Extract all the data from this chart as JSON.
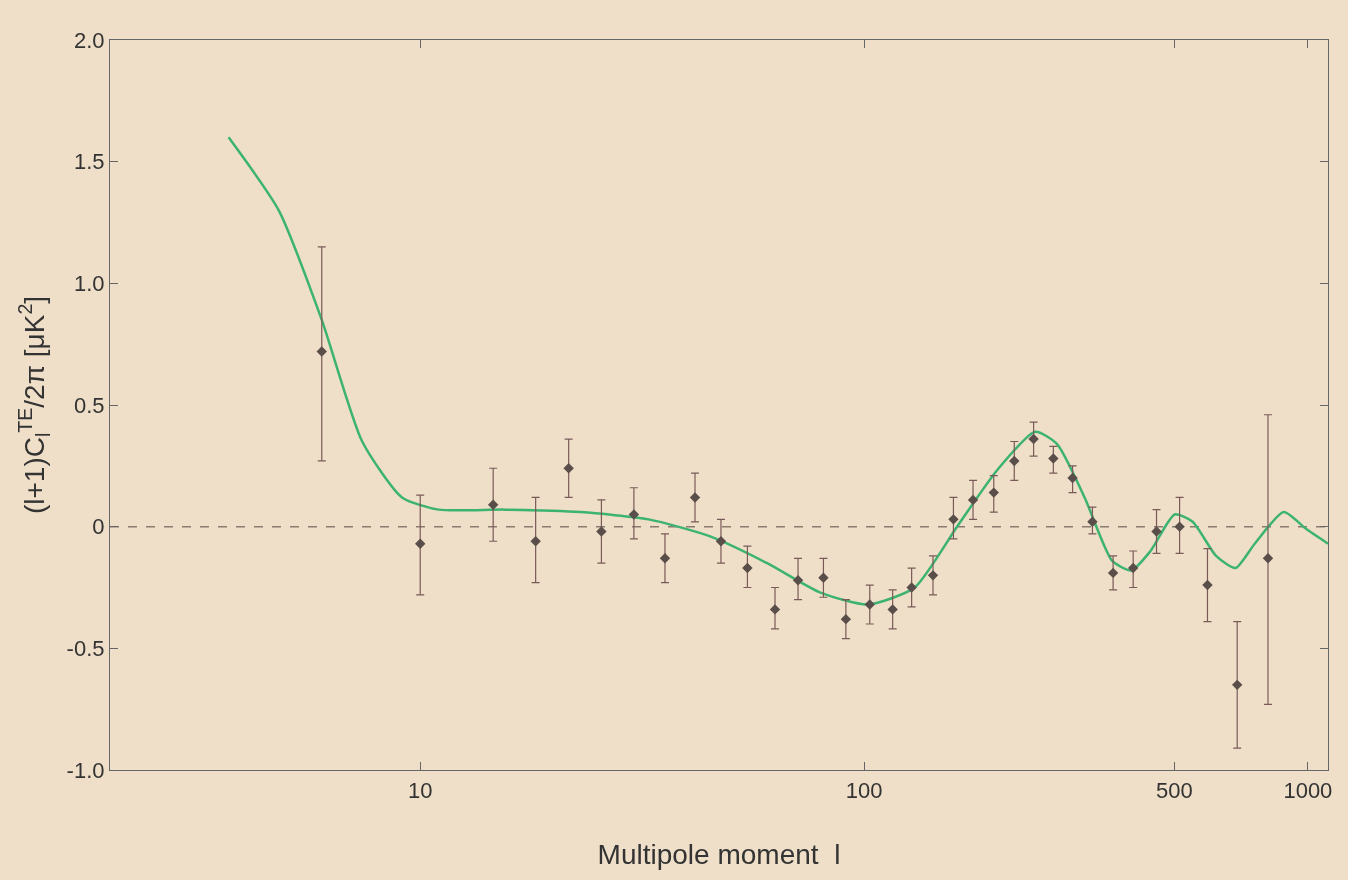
{
  "chart_data": {
    "type": "scatter",
    "xlabel": "Multipole moment  l",
    "ylabel": "(l+1)C$_{l}$$^{TE}$/2π [μK$^{2}$]",
    "log": "x",
    "xlim": [
      2,
      1110
    ],
    "xticks": [
      10,
      100,
      500,
      1000
    ],
    "ylim": [
      -1.0,
      2.0
    ],
    "yticks": [
      {
        "value": -1.0,
        "label": "-1.0"
      },
      {
        "value": -0.5,
        "label": "-0.5"
      },
      0,
      {
        "value": 0.5,
        "label": "0.5"
      },
      {
        "value": 1.0,
        "label": "1.0"
      },
      {
        "value": 1.5,
        "label": "1.5"
      },
      {
        "value": 2.0,
        "label": "2.0"
      }
    ],
    "grid": false,
    "ref_lines": [
      {
        "axis": "y",
        "value": 0,
        "color": "#8a7a70",
        "line_style": "dashed"
      }
    ],
    "series": [
      {
        "type": "line",
        "color": "#3cb371",
        "line_style": "solid",
        "marker": "none",
        "x": [
          3.7,
          4.8,
          6.0,
          7.4,
          9.1,
          11,
          15.5,
          23,
          32.7,
          45,
          60.5,
          79.5,
          102,
          130,
          162,
          199,
          243,
          272,
          314,
          362,
          400,
          442,
          501,
          550,
          621,
          687,
          759,
          882,
          992,
          1110
        ],
        "values": [
          1.6,
          1.3,
          0.85,
          0.35,
          0.12,
          0.07,
          0.07,
          0.06,
          0.03,
          -0.04,
          -0.15,
          -0.27,
          -0.32,
          -0.25,
          0.0,
          0.23,
          0.39,
          0.34,
          0.12,
          -0.14,
          -0.18,
          -0.1,
          0.05,
          0.02,
          -0.12,
          -0.17,
          -0.07,
          0.06,
          -0.01,
          -0.07
        ]
      },
      {
        "color": "#5a4e4a",
        "marker": "diamond",
        "x": [
          6,
          10,
          14.6,
          18.2,
          21.6,
          25.6,
          30.3,
          35.6,
          41.6,
          47.6,
          54.6,
          63,
          71,
          81,
          91,
          103,
          116,
          128,
          143,
          159,
          176,
          196,
          218,
          241,
          267,
          295,
          327,
          364,
          404,
          456,
          514,
          594,
          693,
          813
        ],
        "values": [
          0.72,
          -0.07,
          0.09,
          -0.06,
          0.24,
          -0.02,
          0.05,
          -0.13,
          0.12,
          -0.06,
          -0.17,
          -0.34,
          -0.22,
          -0.21,
          -0.38,
          -0.32,
          -0.34,
          -0.25,
          -0.2,
          0.03,
          0.11,
          0.14,
          0.27,
          0.36,
          0.28,
          0.2,
          0.02,
          -0.19,
          -0.17,
          -0.02,
          0.0,
          -0.24,
          -0.65,
          -0.13
        ],
        "errors": [
          [
            0.27,
            1.15
          ],
          [
            -0.28,
            0.13
          ],
          [
            -0.06,
            0.24
          ],
          [
            -0.23,
            0.12
          ],
          [
            0.12,
            0.36
          ],
          [
            -0.15,
            0.11
          ],
          [
            -0.05,
            0.16
          ],
          [
            -0.23,
            -0.03
          ],
          [
            0.02,
            0.22
          ],
          [
            -0.15,
            0.03
          ],
          [
            -0.25,
            -0.08
          ],
          [
            -0.42,
            -0.25
          ],
          [
            -0.3,
            -0.13
          ],
          [
            -0.29,
            -0.13
          ],
          [
            -0.46,
            -0.3
          ],
          [
            -0.4,
            -0.24
          ],
          [
            -0.42,
            -0.26
          ],
          [
            -0.33,
            -0.17
          ],
          [
            -0.28,
            -0.12
          ],
          [
            -0.05,
            0.12
          ],
          [
            0.03,
            0.19
          ],
          [
            0.06,
            0.21
          ],
          [
            0.19,
            0.35
          ],
          [
            0.29,
            0.43
          ],
          [
            0.22,
            0.33
          ],
          [
            0.14,
            0.25
          ],
          [
            -0.03,
            0.08
          ],
          [
            -0.26,
            -0.12
          ],
          [
            -0.25,
            -0.1
          ],
          [
            -0.11,
            0.07
          ],
          [
            -0.11,
            0.12
          ],
          [
            -0.39,
            -0.09
          ],
          [
            -0.91,
            -0.39
          ],
          [
            -0.73,
            0.46
          ]
        ]
      }
    ]
  }
}
